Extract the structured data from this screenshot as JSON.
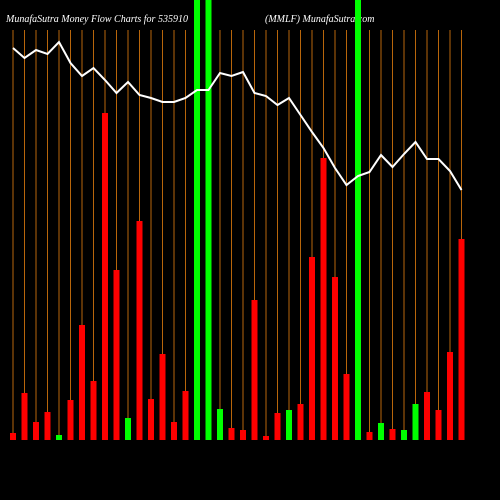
{
  "chart_data": {
    "type": "bar",
    "title": "MunafaSutra  Money Flow  Charts for 535910",
    "subtitle": "(MMLF) MunafaSutra.com",
    "categories": [
      null,
      null,
      null,
      null,
      null,
      null,
      null,
      null,
      null,
      null,
      null,
      null,
      null,
      null,
      null,
      null,
      null,
      null,
      null,
      null,
      null,
      null,
      null,
      null,
      null,
      null,
      null,
      null,
      null,
      null,
      null,
      null,
      null,
      null,
      null,
      null,
      null,
      null,
      null,
      null
    ],
    "values": [
      7,
      47,
      18,
      28,
      5,
      40,
      115,
      59,
      327,
      170,
      22,
      219,
      41,
      86,
      18,
      49,
      440,
      440,
      31,
      12,
      10,
      140,
      4,
      27,
      30,
      36,
      183,
      282,
      163,
      66,
      440,
      8,
      17,
      11,
      10,
      36,
      48,
      30,
      88,
      201
    ],
    "colors": [
      "#ff0000",
      "#ff0000",
      "#ff0000",
      "#ff0000",
      "#00ff00",
      "#ff0000",
      "#ff0000",
      "#ff0000",
      "#ff0000",
      "#ff0000",
      "#00ff00",
      "#ff0000",
      "#ff0000",
      "#ff0000",
      "#ff0000",
      "#ff0000",
      "#00ff00",
      "#00ff00",
      "#00ff00",
      "#ff0000",
      "#ff0000",
      "#ff0000",
      "#ff0000",
      "#ff0000",
      "#00ff00",
      "#ff0000",
      "#ff0000",
      "#ff0000",
      "#ff0000",
      "#ff0000",
      "#00ff00",
      "#ff0000",
      "#00ff00",
      "#ff0000",
      "#00ff00",
      "#00ff00",
      "#ff0000",
      "#ff0000",
      "#ff0000",
      "#ff0000"
    ],
    "line": {
      "color": "#ffffff",
      "values": [
        392,
        382,
        390,
        386,
        398,
        377,
        364,
        372,
        360,
        347,
        358,
        345,
        342,
        338,
        338,
        342,
        350,
        350,
        367,
        364,
        368,
        347,
        344,
        335,
        342,
        325,
        308,
        292,
        272,
        255,
        264,
        268,
        285,
        273,
        286,
        298,
        281,
        281,
        269,
        250
      ]
    },
    "ylim": [
      0,
      440
    ],
    "y2lim": [
      0,
      440
    ],
    "grid": true,
    "grid_color": "#b8660b"
  }
}
